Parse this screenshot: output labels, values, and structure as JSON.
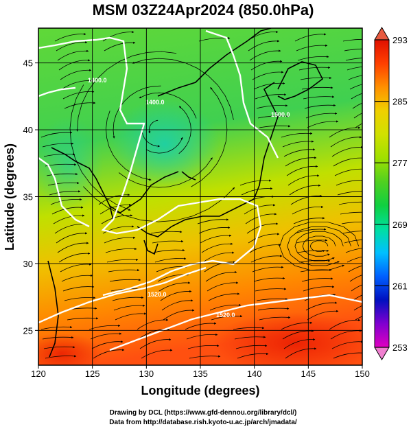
{
  "title": "MSM 03Z24Apr2024 (850.0hPa)",
  "xaxis": {
    "label": "Longitude (degrees)",
    "ticks": [
      "120",
      "125",
      "130",
      "135",
      "140",
      "145",
      "150"
    ],
    "min": 120,
    "max": 150
  },
  "yaxis": {
    "label": "Latitude  (degrees)",
    "ticks": [
      "25",
      "30",
      "35",
      "40",
      "45"
    ],
    "min": 22.4,
    "max": 47.6
  },
  "colorbar": {
    "ticks": [
      "293",
      "285",
      "277",
      "269",
      "261",
      "253"
    ],
    "min": 253,
    "max": 293,
    "colors": [
      "#e000c0",
      "#8000d0",
      "#0010c0",
      "#0060ff",
      "#00c0ff",
      "#00e0a0",
      "#10d040",
      "#50d020",
      "#a0e000",
      "#d0e000",
      "#f0d000",
      "#ff9000",
      "#ff4000",
      "#e01000"
    ]
  },
  "contours": [
    "1400.0",
    "1500.0",
    "1520.0",
    "1540.0"
  ],
  "credits": {
    "line1": "Drawing by DCL (https://www.gfd-dennou.org/library/dcl/)",
    "line2": "Data from http://database.rish.kyoto-u.ac.jp/arch/jmadata/"
  }
}
